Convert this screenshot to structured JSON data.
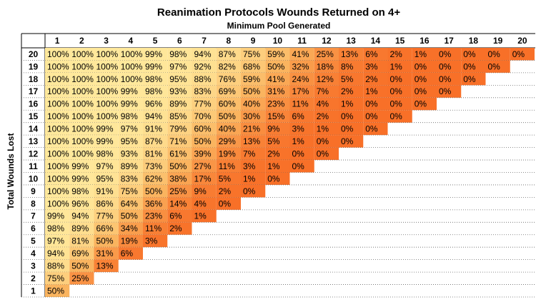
{
  "header": {
    "title": "Reanimation Protocols Wounds Returned on 4+",
    "subtitle": "Minimum Pool Generated",
    "y_axis_label": "Total Wounds Lost"
  },
  "table": {
    "columns": [
      "1",
      "2",
      "3",
      "4",
      "5",
      "6",
      "7",
      "8",
      "9",
      "10",
      "11",
      "12",
      "13",
      "14",
      "15",
      "16",
      "17",
      "18",
      "19",
      "20"
    ],
    "rows": [
      {
        "label": "20",
        "cells": [
          "100%",
          "100%",
          "100%",
          "100%",
          "99%",
          "98%",
          "94%",
          "87%",
          "75%",
          "59%",
          "41%",
          "25%",
          "13%",
          "6%",
          "2%",
          "1%",
          "0%",
          "0%",
          "0%",
          "0%"
        ]
      },
      {
        "label": "19",
        "cells": [
          "100%",
          "100%",
          "100%",
          "100%",
          "99%",
          "97%",
          "92%",
          "82%",
          "68%",
          "50%",
          "32%",
          "18%",
          "8%",
          "3%",
          "1%",
          "0%",
          "0%",
          "0%",
          "0%"
        ]
      },
      {
        "label": "18",
        "cells": [
          "100%",
          "100%",
          "100%",
          "100%",
          "98%",
          "95%",
          "88%",
          "76%",
          "59%",
          "41%",
          "24%",
          "12%",
          "5%",
          "2%",
          "0%",
          "0%",
          "0%",
          "0%"
        ]
      },
      {
        "label": "17",
        "cells": [
          "100%",
          "100%",
          "100%",
          "99%",
          "98%",
          "93%",
          "83%",
          "69%",
          "50%",
          "31%",
          "17%",
          "7%",
          "2%",
          "1%",
          "0%",
          "0%",
          "0%"
        ]
      },
      {
        "label": "16",
        "cells": [
          "100%",
          "100%",
          "100%",
          "99%",
          "96%",
          "89%",
          "77%",
          "60%",
          "40%",
          "23%",
          "11%",
          "4%",
          "1%",
          "0%",
          "0%",
          "0%"
        ]
      },
      {
        "label": "15",
        "cells": [
          "100%",
          "100%",
          "100%",
          "98%",
          "94%",
          "85%",
          "70%",
          "50%",
          "30%",
          "15%",
          "6%",
          "2%",
          "0%",
          "0%",
          "0%"
        ]
      },
      {
        "label": "14",
        "cells": [
          "100%",
          "100%",
          "99%",
          "97%",
          "91%",
          "79%",
          "60%",
          "40%",
          "21%",
          "9%",
          "3%",
          "1%",
          "0%",
          "0%"
        ]
      },
      {
        "label": "13",
        "cells": [
          "100%",
          "100%",
          "99%",
          "95%",
          "87%",
          "71%",
          "50%",
          "29%",
          "13%",
          "5%",
          "1%",
          "0%",
          "0%"
        ]
      },
      {
        "label": "12",
        "cells": [
          "100%",
          "100%",
          "98%",
          "93%",
          "81%",
          "61%",
          "39%",
          "19%",
          "7%",
          "2%",
          "0%",
          "0%"
        ]
      },
      {
        "label": "11",
        "cells": [
          "100%",
          "99%",
          "97%",
          "89%",
          "73%",
          "50%",
          "27%",
          "11%",
          "3%",
          "1%",
          "0%"
        ]
      },
      {
        "label": "10",
        "cells": [
          "100%",
          "99%",
          "95%",
          "83%",
          "62%",
          "38%",
          "17%",
          "5%",
          "1%",
          "0%"
        ]
      },
      {
        "label": "9",
        "cells": [
          "100%",
          "98%",
          "91%",
          "75%",
          "50%",
          "25%",
          "9%",
          "2%",
          "0%"
        ]
      },
      {
        "label": "8",
        "cells": [
          "100%",
          "96%",
          "86%",
          "64%",
          "36%",
          "14%",
          "4%",
          "0%"
        ]
      },
      {
        "label": "7",
        "cells": [
          "99%",
          "94%",
          "77%",
          "50%",
          "23%",
          "6%",
          "1%"
        ]
      },
      {
        "label": "6",
        "cells": [
          "98%",
          "89%",
          "66%",
          "34%",
          "11%",
          "2%"
        ]
      },
      {
        "label": "5",
        "cells": [
          "97%",
          "81%",
          "50%",
          "19%",
          "3%"
        ]
      },
      {
        "label": "4",
        "cells": [
          "94%",
          "69%",
          "31%",
          "6%"
        ]
      },
      {
        "label": "3",
        "cells": [
          "88%",
          "50%",
          "13%"
        ]
      },
      {
        "label": "2",
        "cells": [
          "75%",
          "25%"
        ]
      },
      {
        "label": "1",
        "cells": [
          "50%"
        ]
      }
    ]
  }
}
